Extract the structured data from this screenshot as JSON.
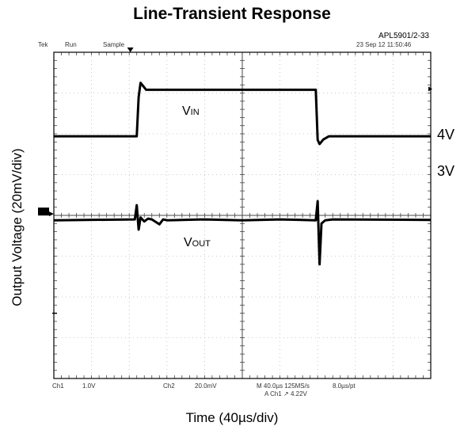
{
  "chart": {
    "title": "Line-Transient Response",
    "figure_id": "APL5901/2-33",
    "ylabel": "Output Voltage (20mV/div)",
    "xlabel": "Time (40µs/div)",
    "scope_header": {
      "mode": "Tek",
      "state": "Run",
      "acquire": "Sample",
      "timestamp": "23 Sep 12 11:50:46"
    },
    "scope_footer": {
      "ch1": "Ch1",
      "ch1_scale": "1.0V",
      "ch2": "Ch2",
      "ch2_scale": "20.0mV",
      "timebase": "M 40.0µs 125MS/s",
      "trigger": "A Ch1 ↗ 4.22V",
      "record": "8.0µs/pt"
    },
    "level_labels": {
      "upper": "4V",
      "lower": "3V"
    },
    "trace_labels": {
      "vin_main": "V",
      "vin_sub": "IN",
      "vout_main": "V",
      "vout_sub": "OUT"
    }
  },
  "chart_data": {
    "type": "line",
    "x_unit": "div",
    "xlim": [
      0,
      10
    ],
    "ylim": [
      -4,
      4
    ],
    "grid": true,
    "series": [
      {
        "name": "VIN",
        "color": "#000000",
        "x": [
          0,
          2.2,
          2.25,
          2.3,
          2.45,
          6.95,
          7.0,
          7.05,
          7.15,
          7.3,
          10
        ],
        "y": [
          1.94,
          1.94,
          2.9,
          3.25,
          3.08,
          3.08,
          1.85,
          1.75,
          1.86,
          1.94,
          1.94
        ]
      },
      {
        "name": "VOUT",
        "color": "#000000",
        "x": [
          0,
          2.15,
          2.2,
          2.25,
          2.3,
          2.4,
          2.5,
          2.6,
          2.8,
          2.9,
          3.0,
          4.0,
          5.0,
          6.0,
          6.95,
          7.0,
          7.05,
          7.1,
          7.2,
          7.4,
          10
        ],
        "y": [
          -0.12,
          -0.1,
          0.25,
          -0.35,
          -0.05,
          -0.15,
          -0.08,
          -0.1,
          -0.22,
          -0.1,
          -0.12,
          -0.1,
          -0.12,
          -0.1,
          -0.12,
          0.35,
          -1.2,
          -0.2,
          -0.12,
          -0.1,
          -0.11
        ]
      }
    ]
  }
}
